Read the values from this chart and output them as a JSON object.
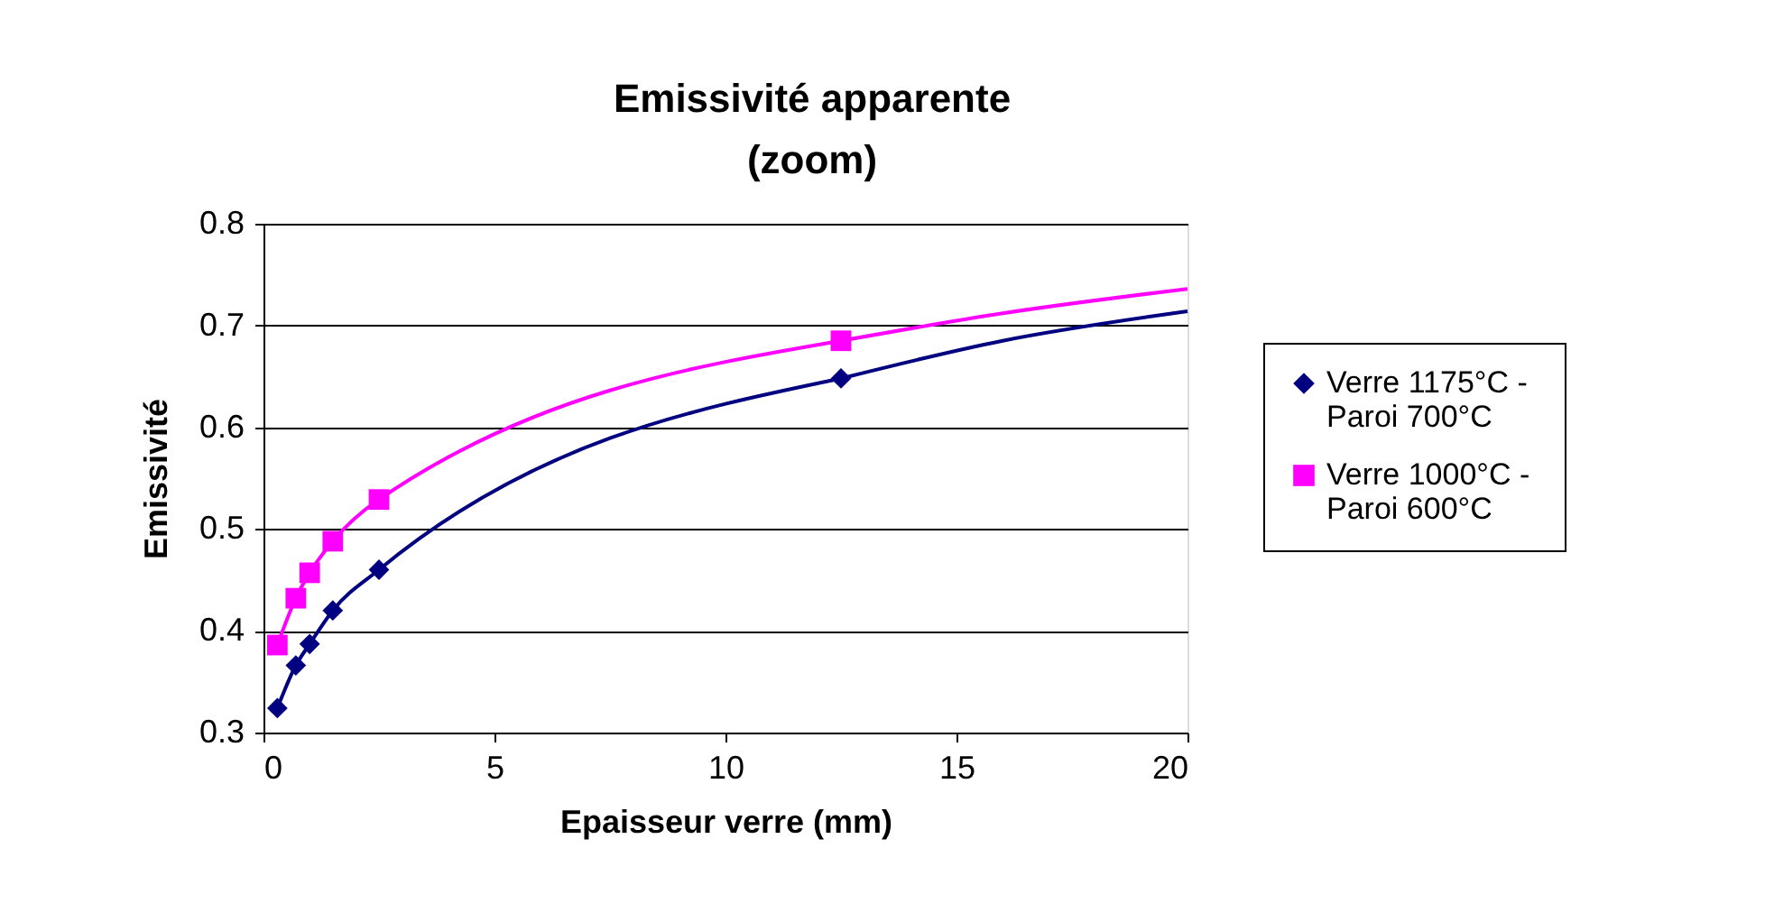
{
  "chart_data": {
    "type": "line",
    "title": "Emissivité apparente\n(zoom)",
    "xlabel": "Epaisseur verre (mm)",
    "ylabel": "Emissivité",
    "xlim": [
      0,
      20
    ],
    "xticks": [
      0,
      5,
      10,
      15,
      20
    ],
    "ylim": [
      0.3,
      0.8
    ],
    "yticks": [
      0.3,
      0.4,
      0.5,
      0.6,
      0.7,
      0.8
    ],
    "grid": "y",
    "legend": "right",
    "series": [
      {
        "name": "Verre 1175°C  - Paroi 700°C",
        "color": "#000080",
        "marker": "diamond",
        "x": [
          0.3,
          0.7,
          1.0,
          1.5,
          2.5,
          12.5
        ],
        "values": [
          0.324,
          0.366,
          0.387,
          0.42,
          0.46,
          0.648
        ]
      },
      {
        "name": "Verre 1000°C  - Paroi 600°C",
        "color": "#ff00ff",
        "marker": "square",
        "x": [
          0.3,
          0.7,
          1.0,
          1.5,
          2.5,
          12.5
        ],
        "values": [
          0.386,
          0.432,
          0.457,
          0.488,
          0.529,
          0.685
        ]
      },
      {
        "color": "#000080",
        "marker": "none",
        "x": [
          12.5,
          16,
          20
        ],
        "values": [
          0.648,
          0.685,
          0.714
        ]
      },
      {
        "color": "#ff00ff",
        "marker": "none",
        "x": [
          12.5,
          16,
          20
        ],
        "values": [
          0.685,
          0.712,
          0.736
        ]
      }
    ]
  }
}
